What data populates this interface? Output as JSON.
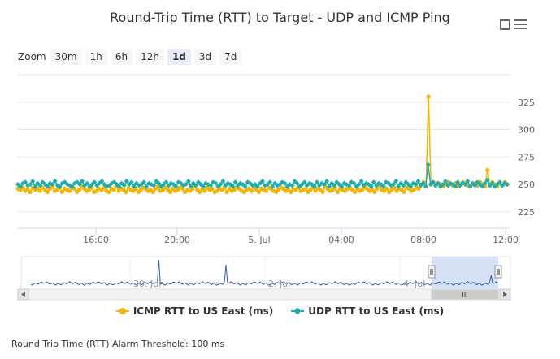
{
  "title": "Round-Trip Time (RTT) to Target - UDP and ICMP Ping",
  "zoom": {
    "label": "Zoom",
    "buttons": [
      "30m",
      "1h",
      "6h",
      "12h",
      "1d",
      "3d",
      "7d"
    ],
    "active": "1d"
  },
  "colors": {
    "icmp": "#f5b400",
    "udp": "#1aaeb1",
    "navigator_line": "#335cad",
    "navigator_mask": "#ccdaf2"
  },
  "chart_data": {
    "type": "line",
    "title": "Round-Trip Time (RTT) to Target - UDP and ICMP Ping",
    "xlabel": "",
    "ylabel": "",
    "x_range": [
      "2020-07-04T12:00",
      "2020-07-05T12:00"
    ],
    "x_ticks": [
      "16:00",
      "20:00",
      "5. Jul",
      "04:00",
      "08:00",
      "12:00"
    ],
    "y_ticks": [
      225,
      250,
      275,
      300,
      325
    ],
    "ylim": [
      210,
      350
    ],
    "grid": true,
    "legend_position": "bottom",
    "series": [
      {
        "name": "ICMP RTT to US East (ms)",
        "values": [
          246,
          245,
          247,
          244,
          246,
          243,
          247,
          245,
          246,
          244,
          247,
          245,
          243,
          246,
          248,
          244,
          245,
          247,
          243,
          246,
          245,
          244,
          247,
          246,
          243,
          245,
          248,
          246,
          244,
          245,
          247,
          243,
          244,
          246,
          245,
          247,
          244,
          243,
          246,
          245,
          248,
          244,
          246,
          245,
          243,
          247,
          245,
          244,
          246,
          243,
          245,
          247,
          246,
          244,
          245,
          243,
          246,
          248,
          244,
          245,
          247,
          245,
          243,
          246,
          244,
          245,
          247,
          246,
          243,
          245,
          244,
          246,
          248,
          245,
          243,
          246,
          244,
          247,
          245,
          246,
          243,
          244,
          246,
          245,
          247,
          243,
          246,
          244,
          245,
          247,
          246,
          244,
          243,
          245,
          246,
          244,
          248,
          245,
          243,
          246,
          245,
          244,
          247,
          246,
          244,
          243,
          245,
          247,
          246,
          244,
          245,
          243,
          246,
          245,
          247,
          244,
          245,
          246,
          243,
          245,
          247,
          244,
          246,
          245,
          243,
          248,
          246,
          244,
          245,
          247,
          243,
          246,
          245,
          244,
          246,
          247,
          245,
          243,
          246,
          244,
          245,
          247,
          246,
          244,
          245,
          243,
          246,
          248,
          245,
          244,
          246,
          243,
          245,
          247,
          244,
          246,
          245,
          243,
          247,
          246,
          244,
          245,
          248,
          246,
          250,
          252,
          248,
          330,
          250,
          252,
          249,
          251,
          250,
          248,
          251,
          252,
          250,
          249,
          251,
          248,
          250,
          252,
          251,
          249,
          248,
          250,
          251,
          249,
          252,
          250,
          248,
          263,
          249,
          252,
          250,
          248,
          251,
          249,
          252,
          250
        ]
      },
      {
        "name": "UDP RTT to US East (ms)",
        "values": [
          250,
          248,
          251,
          252,
          249,
          250,
          253,
          248,
          251,
          249,
          252,
          250,
          248,
          251,
          250,
          253,
          249,
          248,
          251,
          252,
          250,
          249,
          248,
          251,
          252,
          250,
          253,
          249,
          251,
          248,
          250,
          252,
          249,
          251,
          253,
          250,
          248,
          249,
          251,
          252,
          250,
          248,
          251,
          249,
          253,
          250,
          252,
          248,
          251,
          249,
          250,
          252,
          248,
          251,
          250,
          249,
          253,
          251,
          248,
          250,
          252,
          249,
          251,
          250,
          248,
          252,
          251,
          249,
          250,
          253,
          248,
          251,
          249,
          252,
          250,
          248,
          251,
          250,
          249,
          252,
          251,
          248,
          250,
          253,
          249,
          251,
          250,
          248,
          252,
          249,
          251,
          250,
          248,
          252,
          251,
          249,
          250,
          248,
          251,
          253,
          249,
          250,
          252,
          248,
          251,
          249,
          250,
          252,
          251,
          248,
          250,
          249,
          253,
          251,
          248,
          250,
          252,
          249,
          251,
          250,
          248,
          252,
          249,
          251,
          250,
          253,
          248,
          251,
          249,
          252,
          250,
          248,
          251,
          250,
          249,
          252,
          251,
          248,
          250,
          253,
          249,
          251,
          250,
          248,
          252,
          249,
          251,
          250,
          248,
          252,
          251,
          249,
          250,
          253,
          248,
          251,
          249,
          252,
          250,
          248,
          251,
          250,
          253,
          249,
          251,
          248,
          268,
          250,
          252,
          249,
          251,
          248,
          250,
          253,
          249,
          251,
          250,
          248,
          252,
          249,
          251,
          250,
          253,
          248,
          251,
          249,
          252,
          250,
          248,
          251,
          254,
          249,
          251,
          248,
          250,
          252,
          249,
          251,
          250
        ]
      }
    ]
  },
  "navigator": {
    "x_labels": [
      "30. Jun",
      "2. Jul",
      "4. Jul"
    ],
    "scroll_grip": "III"
  },
  "footer": "Round Trip Time (RTT) Alarm Threshold: 100 ms"
}
